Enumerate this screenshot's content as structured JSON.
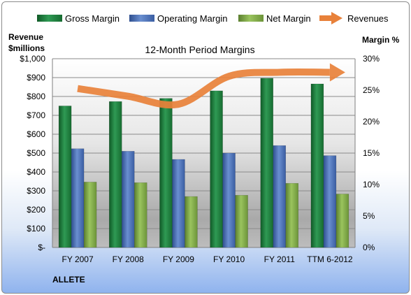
{
  "chart_data": {
    "type": "bar",
    "title": "12-Month Period Margins",
    "company": "ALLETE",
    "categories": [
      "FY 2007",
      "FY 2008",
      "FY 2009",
      "FY 2010",
      "FY 2011",
      "TTM 6-2012"
    ],
    "y_left": {
      "label_line1": "Revenue",
      "label_line2": "$millions",
      "range": [
        0,
        1000
      ],
      "ticks": [
        "$-",
        "$100",
        "$200",
        "$300",
        "$400",
        "$500",
        "$600",
        "$700",
        "$800",
        "$900",
        "$1,000"
      ]
    },
    "y_right": {
      "label": "Margin %",
      "range": [
        0,
        30
      ],
      "ticks": [
        "0%",
        "5%",
        "10%",
        "15%",
        "20%",
        "25%",
        "30%"
      ]
    },
    "series": [
      {
        "name": "Gross Margin",
        "axis": "right",
        "unit": "%",
        "color": "#1e7b3c",
        "values": [
          22.5,
          23.2,
          23.7,
          24.9,
          26.9,
          26.0
        ]
      },
      {
        "name": "Operating Margin",
        "axis": "right",
        "unit": "%",
        "color": "#4a6fb5",
        "values": [
          15.7,
          15.3,
          14.0,
          15.0,
          16.2,
          14.6
        ]
      },
      {
        "name": "Net Margin",
        "axis": "right",
        "unit": "%",
        "color": "#7ea94a",
        "values": [
          10.4,
          10.3,
          8.1,
          8.3,
          10.2,
          8.5
        ]
      },
      {
        "name": "Revenues",
        "axis": "left",
        "unit": "$millions",
        "color": "#e8813a",
        "values": [
          842,
          801,
          759,
          907,
          928,
          928
        ]
      }
    ],
    "legend_position": "top",
    "grid": true
  }
}
